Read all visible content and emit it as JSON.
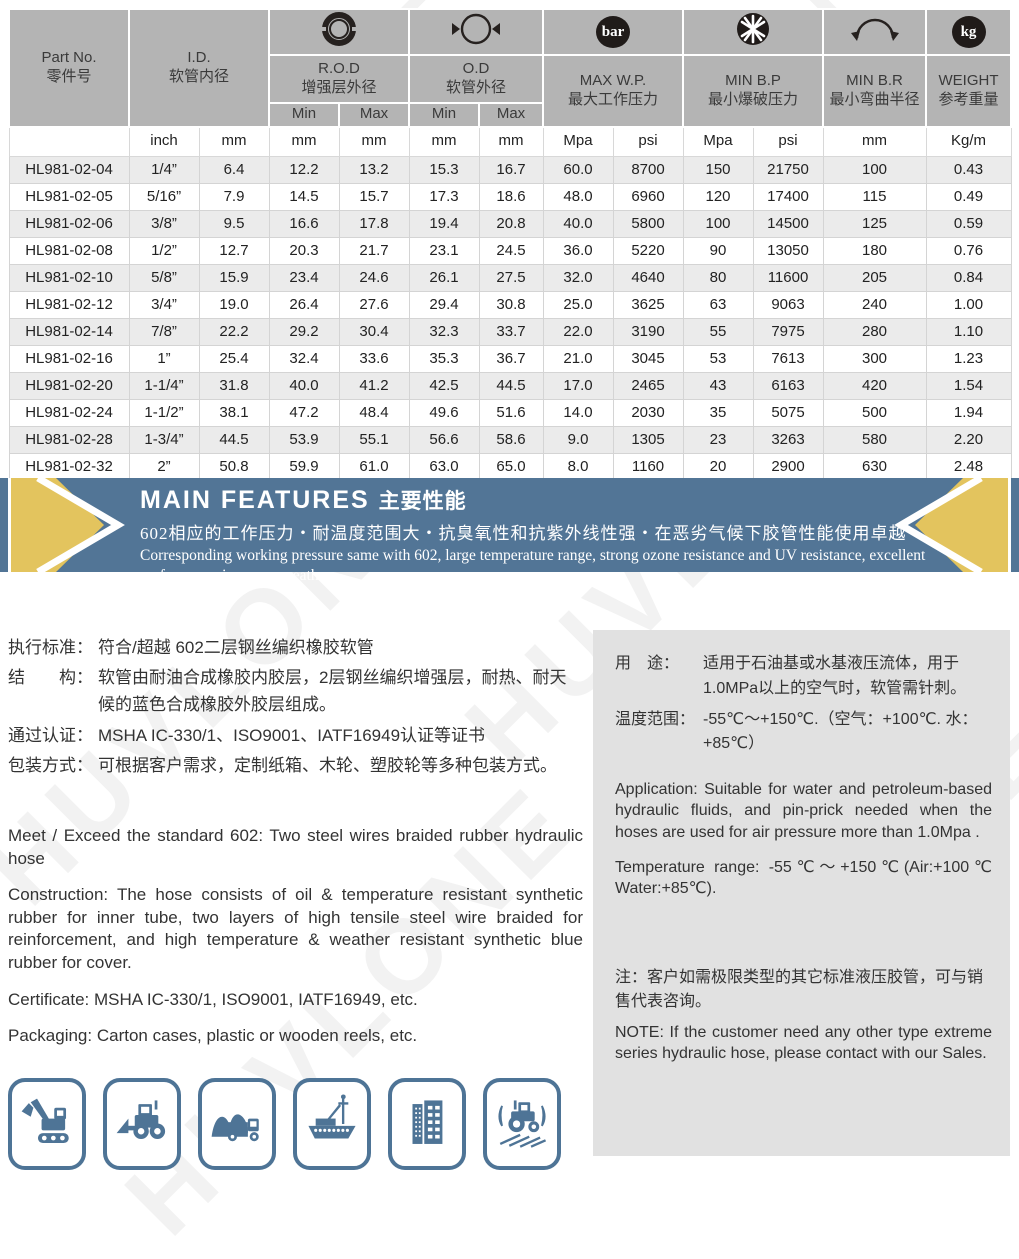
{
  "watermark_text": "HUVLONE",
  "table": {
    "col_headers": {
      "part_no_en": "Part No.",
      "part_no_zh": "零件号",
      "id_en": "I.D.",
      "id_zh": "软管内径",
      "rod_en": "R.O.D",
      "rod_zh": "增强层外径",
      "od_en": "O.D",
      "od_zh": "软管外径",
      "max_wp_en": "MAX W.P.",
      "max_wp_zh": "最大工作压力",
      "min_bp_en": "MIN B.P",
      "min_bp_zh": "最小爆破压力",
      "min_br_en": "MIN B.R",
      "min_br_zh": "最小弯曲半径",
      "weight_en": "WEIGHT",
      "weight_zh": "参考重量",
      "min_label": "Min",
      "max_label": "Max",
      "bar_badge": "bar",
      "kg_badge": "kg"
    },
    "units_row": [
      "",
      "inch",
      "mm",
      "mm",
      "mm",
      "mm",
      "mm",
      "Mpa",
      "psi",
      "Mpa",
      "psi",
      "mm",
      "Kg/m"
    ],
    "rows": [
      [
        "HL981-02-04",
        "1/4”",
        "6.4",
        "12.2",
        "13.2",
        "15.3",
        "16.7",
        "60.0",
        "8700",
        "150",
        "21750",
        "100",
        "0.43"
      ],
      [
        "HL981-02-05",
        "5/16”",
        "7.9",
        "14.5",
        "15.7",
        "17.3",
        "18.6",
        "48.0",
        "6960",
        "120",
        "17400",
        "115",
        "0.49"
      ],
      [
        "HL981-02-06",
        "3/8”",
        "9.5",
        "16.6",
        "17.8",
        "19.4",
        "20.8",
        "40.0",
        "5800",
        "100",
        "14500",
        "125",
        "0.59"
      ],
      [
        "HL981-02-08",
        "1/2”",
        "12.7",
        "20.3",
        "21.7",
        "23.1",
        "24.5",
        "36.0",
        "5220",
        "90",
        "13050",
        "180",
        "0.76"
      ],
      [
        "HL981-02-10",
        "5/8”",
        "15.9",
        "23.4",
        "24.6",
        "26.1",
        "27.5",
        "32.0",
        "4640",
        "80",
        "11600",
        "205",
        "0.84"
      ],
      [
        "HL981-02-12",
        "3/4”",
        "19.0",
        "26.4",
        "27.6",
        "29.4",
        "30.8",
        "25.0",
        "3625",
        "63",
        "9063",
        "240",
        "1.00"
      ],
      [
        "HL981-02-14",
        "7/8”",
        "22.2",
        "29.2",
        "30.4",
        "32.3",
        "33.7",
        "22.0",
        "3190",
        "55",
        "7975",
        "280",
        "1.10"
      ],
      [
        "HL981-02-16",
        "1”",
        "25.4",
        "32.4",
        "33.6",
        "35.3",
        "36.7",
        "21.0",
        "3045",
        "53",
        "7613",
        "300",
        "1.23"
      ],
      [
        "HL981-02-20",
        "1-1/4”",
        "31.8",
        "40.0",
        "41.2",
        "42.5",
        "44.5",
        "17.0",
        "2465",
        "43",
        "6163",
        "420",
        "1.54"
      ],
      [
        "HL981-02-24",
        "1-1/2”",
        "38.1",
        "47.2",
        "48.4",
        "49.6",
        "51.6",
        "14.0",
        "2030",
        "35",
        "5075",
        "500",
        "1.94"
      ],
      [
        "HL981-02-28",
        "1-3/4”",
        "44.5",
        "53.9",
        "55.1",
        "56.6",
        "58.6",
        "9.0",
        "1305",
        "23",
        "3263",
        "580",
        "2.20"
      ],
      [
        "HL981-02-32",
        "2”",
        "50.8",
        "59.9",
        "61.0",
        "63.0",
        "65.0",
        "8.0",
        "1160",
        "20",
        "2900",
        "630",
        "2.48"
      ]
    ]
  },
  "banner": {
    "title_en": "MAIN FEATURES",
    "title_zh": "主要性能",
    "subtitle_zh": "602相应的工作压力・耐温度范围大・抗臭氧性和抗紫外线性强・在恶劣气候下胶管性能使用卓越",
    "subtitle_en": "Corresponding working pressure same with 602, large temperature range, strong ozone resistance and UV resistance, excellent performance in severe weather",
    "bg_color": "#527596",
    "accent_color": "#e3c45e"
  },
  "left_column": {
    "zh_items": [
      {
        "label": "执行标准：",
        "text": "符合/超越 602二层钢丝编织橡胶软管"
      },
      {
        "label": "结　　构：",
        "text": "软管由耐油合成橡胶内胶层，2层钢丝编织增强层，耐热、耐天候的蓝色合成橡胶外胶层组成。"
      },
      {
        "label": "通过认证：",
        "text": "MSHA IC-330/1、ISO9001、IATF16949认证等证书"
      },
      {
        "label": "包装方式：",
        "text": "可根据客户需求，定制纸箱、木轮、塑胶轮等多种包装方式。"
      }
    ],
    "en_paragraphs": [
      "Meet / Exceed the standard 602: Two steel wires braided rubber hydraulic hose",
      "Construction:  The hose consists of oil & temperature resistant synthetic rubber for inner tube, two layers of high tensile steel wire braided for reinforcement, and high temperature & weather resistant synthetic blue rubber for cover.",
      "Certificate: MSHA IC-330/1, ISO9001, IATF16949,  etc.",
      "Packaging: Carton cases, plastic or wooden reels, etc."
    ],
    "app_icon_names": [
      "excavator-icon",
      "wheel-loader-icon",
      "mining-truck-icon",
      "ship-icon",
      "building-icon",
      "tractor-icon"
    ]
  },
  "right_panel": {
    "zh_items": [
      {
        "label": "用　途：",
        "text": "适用于石油基或水基液压流体，用于1.0MPa以上的空气时，软管需针刺。"
      },
      {
        "label": "温度范围：",
        "text": "-55℃～+150℃.（空气：+100℃. 水：+85℃）"
      }
    ],
    "en_paragraphs": [
      "Application: Suitable for water and petroleum-based hydraulic fluids, and pin-prick needed when the hoses are used for air pressure more than 1.0Mpa .",
      "Temperature range:  -55℃～+150℃(Air:+100℃ Water:+85℃)."
    ],
    "note_zh": "注：客户如需极限类型的其它标准液压胶管，可与销售代表咨询。",
    "note_en": "NOTE: If the customer need any other type extreme series hydraulic hose, please contact with our Sales."
  }
}
